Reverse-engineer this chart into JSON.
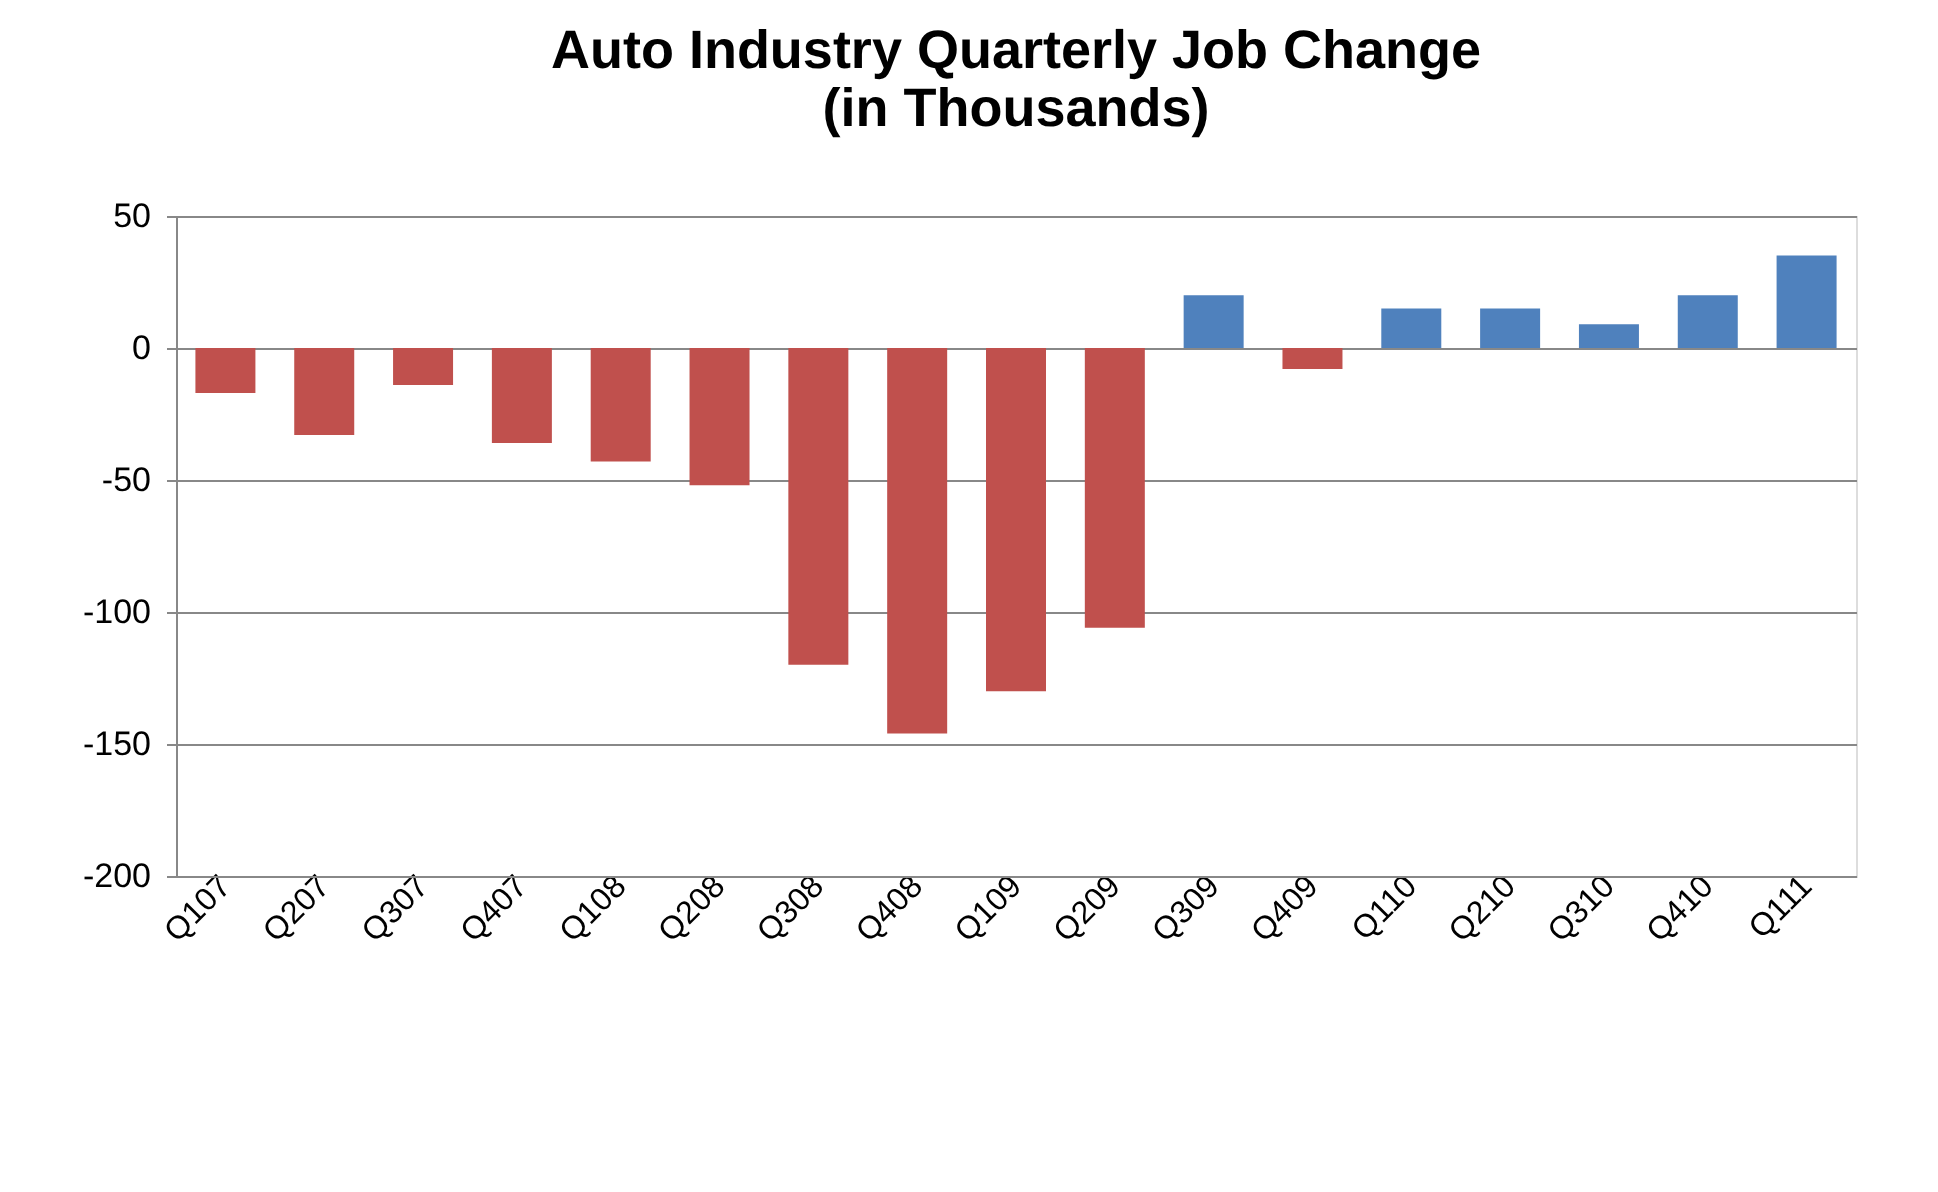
{
  "chart_data": {
    "type": "bar",
    "title": "Auto Industry Quarterly Job Change\n(in Thousands)",
    "categories": [
      "Q107",
      "Q207",
      "Q307",
      "Q407",
      "Q108",
      "Q208",
      "Q308",
      "Q408",
      "Q109",
      "Q209",
      "Q309",
      "Q409",
      "Q110",
      "Q210",
      "Q310",
      "Q410",
      "Q111"
    ],
    "values": [
      -17,
      -33,
      -14,
      -36,
      -43,
      -52,
      -120,
      -146,
      -130,
      -106,
      20,
      -8,
      15,
      15,
      9,
      20,
      35
    ],
    "colors": [
      "#c0504d",
      "#c0504d",
      "#c0504d",
      "#c0504d",
      "#c0504d",
      "#c0504d",
      "#c0504d",
      "#c0504d",
      "#c0504d",
      "#c0504d",
      "#4f81bd",
      "#c0504d",
      "#4f81bd",
      "#4f81bd",
      "#4f81bd",
      "#4f81bd",
      "#4f81bd"
    ],
    "ylim": [
      -200,
      50
    ],
    "yticks": [
      -200,
      -150,
      -100,
      -50,
      0,
      50
    ],
    "grid": "y"
  }
}
